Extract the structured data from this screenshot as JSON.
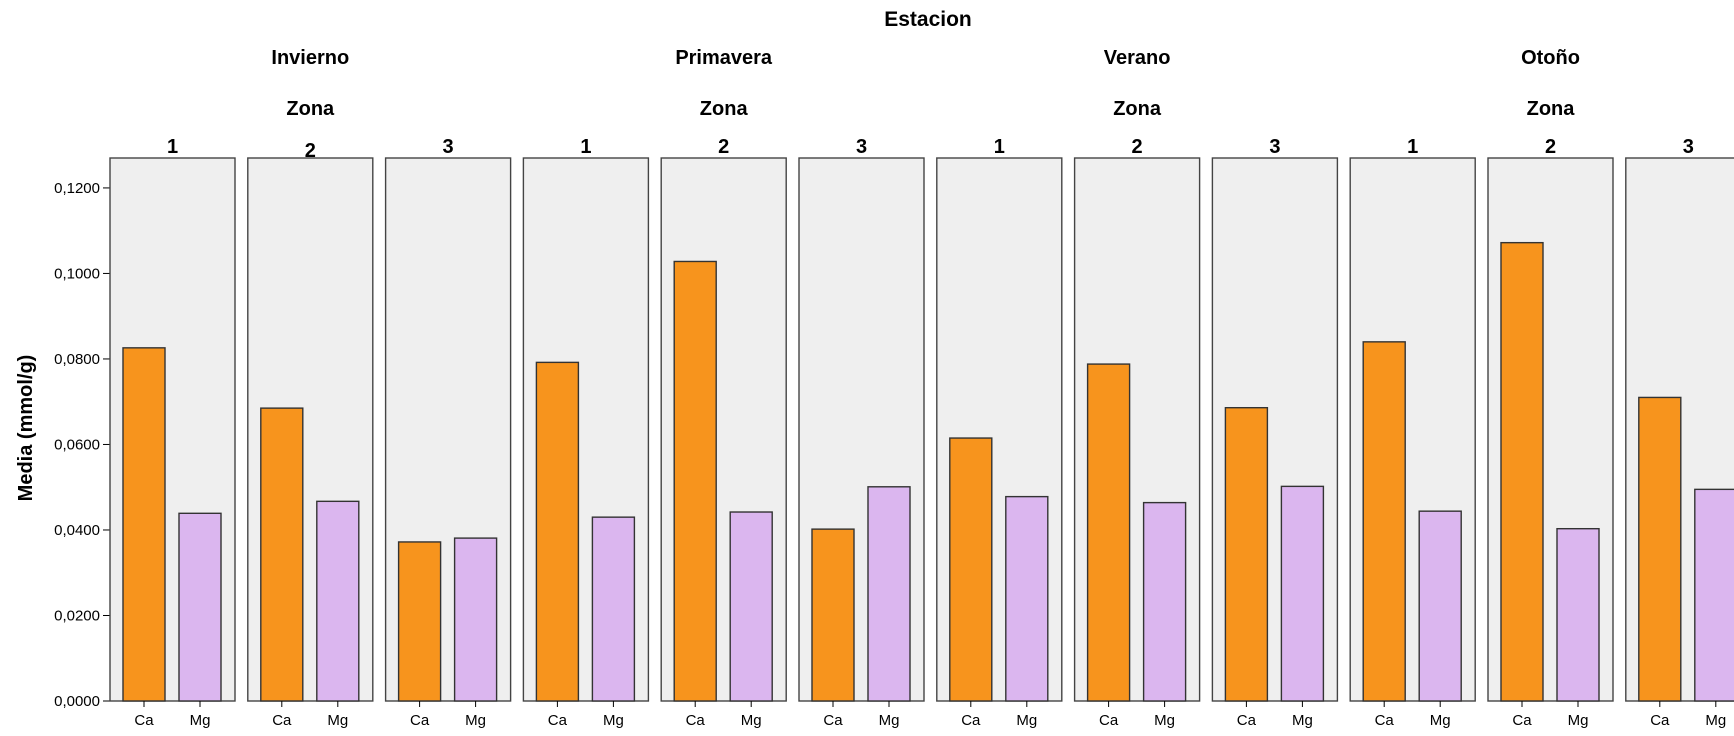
{
  "chart_data": {
    "type": "bar",
    "title": "Estacion",
    "ylabel": "Media (mmol/g)",
    "ylim": [
      0,
      0.127
    ],
    "yticks": [
      "0,0000",
      "0,0200",
      "0,0400",
      "0,0600",
      "0,0800",
      "0,1000",
      "0,1200"
    ],
    "ytick_values": [
      0,
      0.02,
      0.04,
      0.06,
      0.08,
      0.1,
      0.12
    ],
    "categories": [
      "Ca",
      "Mg"
    ],
    "group_label": "Zona",
    "colors": {
      "Ca": "#f7941d",
      "Mg": "#dbb6ef",
      "panel": "#efefef"
    },
    "groups": [
      {
        "label": "Invierno",
        "zonas": [
          {
            "zona": "1",
            "values": [
              0.0826,
              0.0439
            ]
          },
          {
            "zona": "2",
            "values": [
              0.0685,
              0.0467
            ]
          },
          {
            "zona": "3",
            "values": [
              0.0372,
              0.0381
            ]
          }
        ]
      },
      {
        "label": "Primavera",
        "zonas": [
          {
            "zona": "1",
            "values": [
              0.0792,
              0.043
            ]
          },
          {
            "zona": "2",
            "values": [
              0.1028,
              0.0442
            ]
          },
          {
            "zona": "3",
            "values": [
              0.0402,
              0.0501
            ]
          }
        ]
      },
      {
        "label": "Verano",
        "zonas": [
          {
            "zona": "1",
            "values": [
              0.0615,
              0.0478
            ]
          },
          {
            "zona": "2",
            "values": [
              0.0788,
              0.0464
            ]
          },
          {
            "zona": "3",
            "values": [
              0.0686,
              0.0502
            ]
          }
        ]
      },
      {
        "label": "Otoño",
        "zonas": [
          {
            "zona": "1",
            "values": [
              0.084,
              0.0444
            ]
          },
          {
            "zona": "2",
            "values": [
              0.1072,
              0.0403
            ]
          },
          {
            "zona": "3",
            "values": [
              0.071,
              0.0495
            ]
          }
        ]
      }
    ]
  }
}
